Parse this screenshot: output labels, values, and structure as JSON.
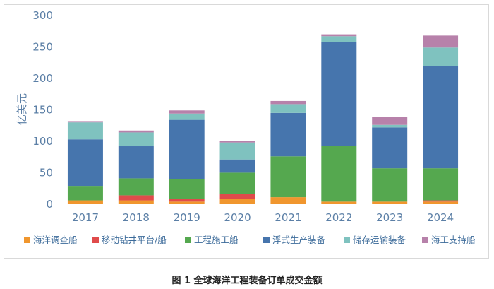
{
  "caption": "图 1 全球海洋工程装备订单成交金额",
  "chart_data": {
    "type": "bar",
    "stacked": true,
    "ylabel": "亿美元",
    "ylim": [
      0,
      300
    ],
    "yticks": [
      0,
      50,
      100,
      150,
      200,
      250,
      300
    ],
    "grid": false,
    "legend_position": "bottom",
    "categories": [
      "2017",
      "2018",
      "2019",
      "2020",
      "2021",
      "2022",
      "2023",
      "2024"
    ],
    "series": [
      {
        "name": "海洋调查船",
        "color": "#f0962e",
        "values": [
          5,
          5,
          3,
          7,
          10,
          3,
          3,
          3
        ]
      },
      {
        "name": "移动钻井平台/船",
        "color": "#e04b4b",
        "values": [
          0,
          8,
          4,
          8,
          0,
          0,
          0,
          2
        ]
      },
      {
        "name": "工程施工船",
        "color": "#55a84f",
        "values": [
          23,
          27,
          32,
          34,
          65,
          89,
          53,
          51
        ]
      },
      {
        "name": "浮式生产装备",
        "color": "#4675ad",
        "values": [
          74,
          51,
          94,
          21,
          69,
          165,
          65,
          163
        ]
      },
      {
        "name": "储存运输装备",
        "color": "#7fc2bf",
        "values": [
          27,
          22,
          10,
          27,
          14,
          9,
          4,
          29
        ]
      },
      {
        "name": "海工支持船",
        "color": "#b781aa",
        "values": [
          2,
          3,
          5,
          3,
          5,
          3,
          13,
          19
        ]
      }
    ]
  }
}
